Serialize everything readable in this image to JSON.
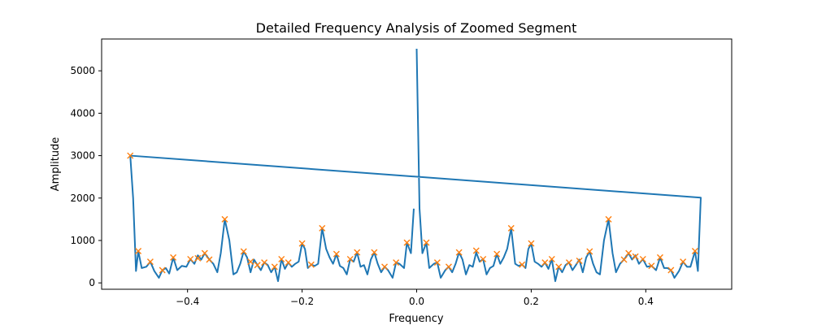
{
  "chart_data": {
    "type": "line",
    "title": "Detailed Frequency Analysis of Zoomed Segment",
    "xlabel": "Frequency",
    "ylabel": "Amplitude",
    "xlim": [
      -0.55,
      0.55
    ],
    "ylim": [
      -150,
      5750
    ],
    "xticks": [
      -0.4,
      -0.2,
      0.0,
      0.2,
      0.4
    ],
    "xtick_labels": [
      "−0.4",
      "−0.2",
      "0.0",
      "0.2",
      "0.4"
    ],
    "yticks": [
      0,
      1000,
      2000,
      3000,
      4000,
      5000
    ],
    "ytick_labels": [
      "0",
      "1000",
      "2000",
      "3000",
      "4000",
      "5000"
    ],
    "grid": false,
    "legend": "none",
    "colors": {
      "line": "#1f77b4",
      "peaks": "#ff7f0e"
    },
    "series": [
      {
        "values": [
          [
            0.0,
            5520
          ],
          [
            0.005,
            1750
          ],
          [
            0.01,
            700
          ],
          [
            0.017,
            950
          ],
          [
            0.022,
            350
          ],
          [
            0.03,
            450
          ],
          [
            0.036,
            480
          ],
          [
            0.042,
            120
          ],
          [
            0.05,
            300
          ],
          [
            0.056,
            380
          ],
          [
            0.062,
            250
          ],
          [
            0.068,
            450
          ],
          [
            0.074,
            720
          ],
          [
            0.08,
            550
          ],
          [
            0.086,
            200
          ],
          [
            0.092,
            420
          ],
          [
            0.098,
            380
          ],
          [
            0.104,
            720
          ],
          [
            0.11,
            500
          ],
          [
            0.116,
            560
          ],
          [
            0.122,
            200
          ],
          [
            0.128,
            350
          ],
          [
            0.134,
            400
          ],
          [
            0.14,
            680
          ],
          [
            0.146,
            450
          ],
          [
            0.152,
            600
          ],
          [
            0.158,
            800
          ],
          [
            0.165,
            1290
          ],
          [
            0.172,
            450
          ],
          [
            0.178,
            400
          ],
          [
            0.184,
            430
          ],
          [
            0.19,
            350
          ],
          [
            0.195,
            800
          ],
          [
            0.2,
            930
          ],
          [
            0.206,
            500
          ],
          [
            0.212,
            450
          ],
          [
            0.218,
            380
          ],
          [
            0.224,
            480
          ],
          [
            0.23,
            330
          ],
          [
            0.236,
            560
          ],
          [
            0.242,
            40
          ],
          [
            0.248,
            380
          ],
          [
            0.254,
            250
          ],
          [
            0.26,
            420
          ],
          [
            0.266,
            480
          ],
          [
            0.272,
            300
          ],
          [
            0.278,
            420
          ],
          [
            0.284,
            550
          ],
          [
            0.29,
            250
          ],
          [
            0.296,
            600
          ],
          [
            0.302,
            740
          ],
          [
            0.308,
            450
          ],
          [
            0.314,
            250
          ],
          [
            0.32,
            200
          ],
          [
            0.327,
            1000
          ],
          [
            0.335,
            1500
          ],
          [
            0.342,
            700
          ],
          [
            0.348,
            250
          ],
          [
            0.355,
            450
          ],
          [
            0.362,
            550
          ],
          [
            0.37,
            700
          ],
          [
            0.376,
            550
          ],
          [
            0.382,
            650
          ],
          [
            0.388,
            450
          ],
          [
            0.395,
            560
          ],
          [
            0.402,
            380
          ],
          [
            0.41,
            400
          ],
          [
            0.418,
            300
          ],
          [
            0.425,
            600
          ],
          [
            0.432,
            350
          ],
          [
            0.438,
            350
          ],
          [
            0.444,
            300
          ],
          [
            0.45,
            120
          ],
          [
            0.458,
            280
          ],
          [
            0.465,
            500
          ],
          [
            0.472,
            380
          ],
          [
            0.478,
            380
          ],
          [
            0.486,
            750
          ],
          [
            0.491,
            280
          ],
          [
            0.496,
            2000
          ],
          [
            0.496,
            2010
          ],
          [
            -0.5,
            3000
          ],
          [
            -0.495,
            2000
          ],
          [
            -0.49,
            280
          ],
          [
            -0.486,
            750
          ],
          [
            -0.48,
            350
          ],
          [
            -0.472,
            380
          ],
          [
            -0.465,
            500
          ],
          [
            -0.458,
            280
          ],
          [
            -0.45,
            120
          ],
          [
            -0.444,
            300
          ],
          [
            -0.438,
            350
          ],
          [
            -0.432,
            220
          ],
          [
            -0.425,
            600
          ],
          [
            -0.418,
            300
          ],
          [
            -0.41,
            400
          ],
          [
            -0.402,
            380
          ],
          [
            -0.395,
            560
          ],
          [
            -0.388,
            450
          ],
          [
            -0.382,
            650
          ],
          [
            -0.376,
            550
          ],
          [
            -0.37,
            700
          ],
          [
            -0.362,
            550
          ],
          [
            -0.355,
            450
          ],
          [
            -0.348,
            250
          ],
          [
            -0.342,
            700
          ],
          [
            -0.335,
            1500
          ],
          [
            -0.327,
            1000
          ],
          [
            -0.32,
            200
          ],
          [
            -0.314,
            250
          ],
          [
            -0.308,
            450
          ],
          [
            -0.302,
            740
          ],
          [
            -0.296,
            600
          ],
          [
            -0.29,
            250
          ],
          [
            -0.284,
            550
          ],
          [
            -0.278,
            420
          ],
          [
            -0.272,
            300
          ],
          [
            -0.266,
            480
          ],
          [
            -0.26,
            420
          ],
          [
            -0.254,
            250
          ],
          [
            -0.248,
            380
          ],
          [
            -0.242,
            40
          ],
          [
            -0.236,
            560
          ],
          [
            -0.23,
            330
          ],
          [
            -0.224,
            480
          ],
          [
            -0.218,
            380
          ],
          [
            -0.212,
            450
          ],
          [
            -0.206,
            500
          ],
          [
            -0.2,
            930
          ],
          [
            -0.195,
            800
          ],
          [
            -0.19,
            350
          ],
          [
            -0.184,
            430
          ],
          [
            -0.178,
            400
          ],
          [
            -0.172,
            450
          ],
          [
            -0.165,
            1290
          ],
          [
            -0.158,
            800
          ],
          [
            -0.152,
            600
          ],
          [
            -0.146,
            450
          ],
          [
            -0.14,
            680
          ],
          [
            -0.134,
            400
          ],
          [
            -0.128,
            350
          ],
          [
            -0.122,
            200
          ],
          [
            -0.116,
            560
          ],
          [
            -0.11,
            500
          ],
          [
            -0.104,
            720
          ],
          [
            -0.098,
            380
          ],
          [
            -0.092,
            420
          ],
          [
            -0.086,
            200
          ],
          [
            -0.08,
            550
          ],
          [
            -0.074,
            720
          ],
          [
            -0.068,
            450
          ],
          [
            -0.062,
            250
          ],
          [
            -0.056,
            380
          ],
          [
            -0.05,
            300
          ],
          [
            -0.042,
            120
          ],
          [
            -0.036,
            480
          ],
          [
            -0.03,
            450
          ],
          [
            -0.022,
            350
          ],
          [
            -0.017,
            950
          ],
          [
            -0.01,
            700
          ],
          [
            -0.005,
            1750
          ]
        ]
      },
      {
        "type": "scatter",
        "marker": "x",
        "values": [
          [
            -0.5,
            3000
          ],
          [
            -0.486,
            750
          ],
          [
            -0.465,
            500
          ],
          [
            -0.444,
            300
          ],
          [
            -0.425,
            600
          ],
          [
            -0.395,
            560
          ],
          [
            -0.382,
            580
          ],
          [
            -0.37,
            700
          ],
          [
            -0.362,
            550
          ],
          [
            -0.335,
            1500
          ],
          [
            -0.302,
            740
          ],
          [
            -0.29,
            500
          ],
          [
            -0.278,
            420
          ],
          [
            -0.266,
            480
          ],
          [
            -0.248,
            380
          ],
          [
            -0.236,
            560
          ],
          [
            -0.224,
            480
          ],
          [
            -0.2,
            930
          ],
          [
            -0.184,
            430
          ],
          [
            -0.165,
            1290
          ],
          [
            -0.14,
            680
          ],
          [
            -0.116,
            560
          ],
          [
            -0.104,
            720
          ],
          [
            -0.074,
            720
          ],
          [
            -0.056,
            380
          ],
          [
            -0.036,
            480
          ],
          [
            -0.017,
            950
          ],
          [
            0.017,
            950
          ],
          [
            0.036,
            480
          ],
          [
            0.056,
            380
          ],
          [
            0.074,
            720
          ],
          [
            0.104,
            760
          ],
          [
            0.116,
            560
          ],
          [
            0.14,
            680
          ],
          [
            0.165,
            1290
          ],
          [
            0.184,
            430
          ],
          [
            0.2,
            930
          ],
          [
            0.224,
            480
          ],
          [
            0.236,
            560
          ],
          [
            0.248,
            380
          ],
          [
            0.266,
            480
          ],
          [
            0.284,
            520
          ],
          [
            0.302,
            740
          ],
          [
            0.335,
            1500
          ],
          [
            0.362,
            550
          ],
          [
            0.37,
            700
          ],
          [
            0.382,
            620
          ],
          [
            0.395,
            560
          ],
          [
            0.41,
            400
          ],
          [
            0.425,
            600
          ],
          [
            0.444,
            300
          ],
          [
            0.465,
            500
          ],
          [
            0.486,
            750
          ]
        ]
      }
    ]
  }
}
